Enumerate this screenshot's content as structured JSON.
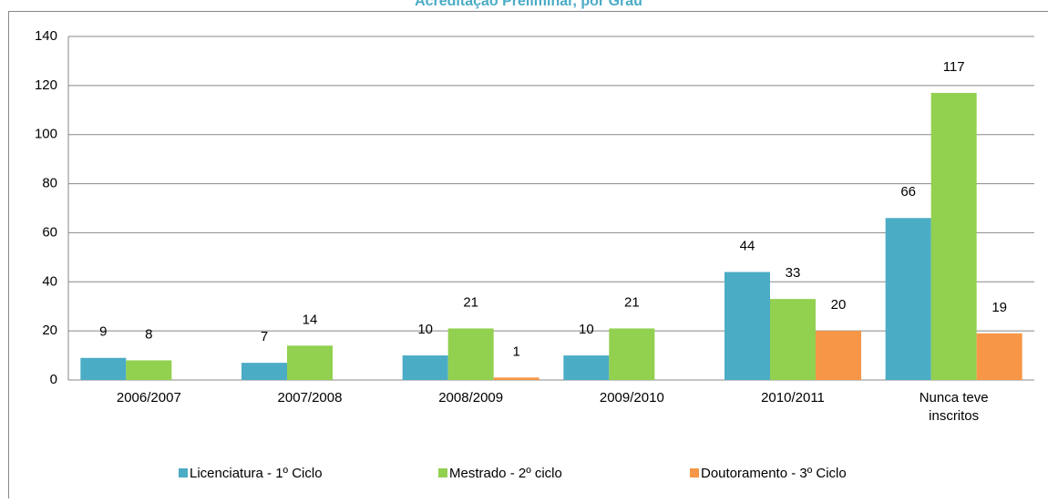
{
  "chart_data": {
    "type": "bar",
    "title": "Acreditação Preliminar, por Grau",
    "categories": [
      "2006/2007",
      "2007/2008",
      "2008/2009",
      "2009/2010",
      "2010/2011",
      "Nunca teve inscritos"
    ],
    "series": [
      {
        "name": "Licenciatura - 1º Ciclo",
        "color": "#4bacc6",
        "values": [
          9,
          7,
          10,
          10,
          44,
          66
        ]
      },
      {
        "name": "Mestrado - 2º ciclo",
        "color": "#92d050",
        "values": [
          8,
          14,
          21,
          21,
          33,
          117
        ]
      },
      {
        "name": "Doutoramento - 3º Ciclo",
        "color": "#f79646",
        "values": [
          null,
          null,
          1,
          null,
          20,
          19
        ]
      }
    ],
    "ylim": [
      0,
      140
    ],
    "yticks": [
      0,
      20,
      40,
      60,
      80,
      100,
      120,
      140
    ],
    "grid": true,
    "legend": "bottom"
  }
}
